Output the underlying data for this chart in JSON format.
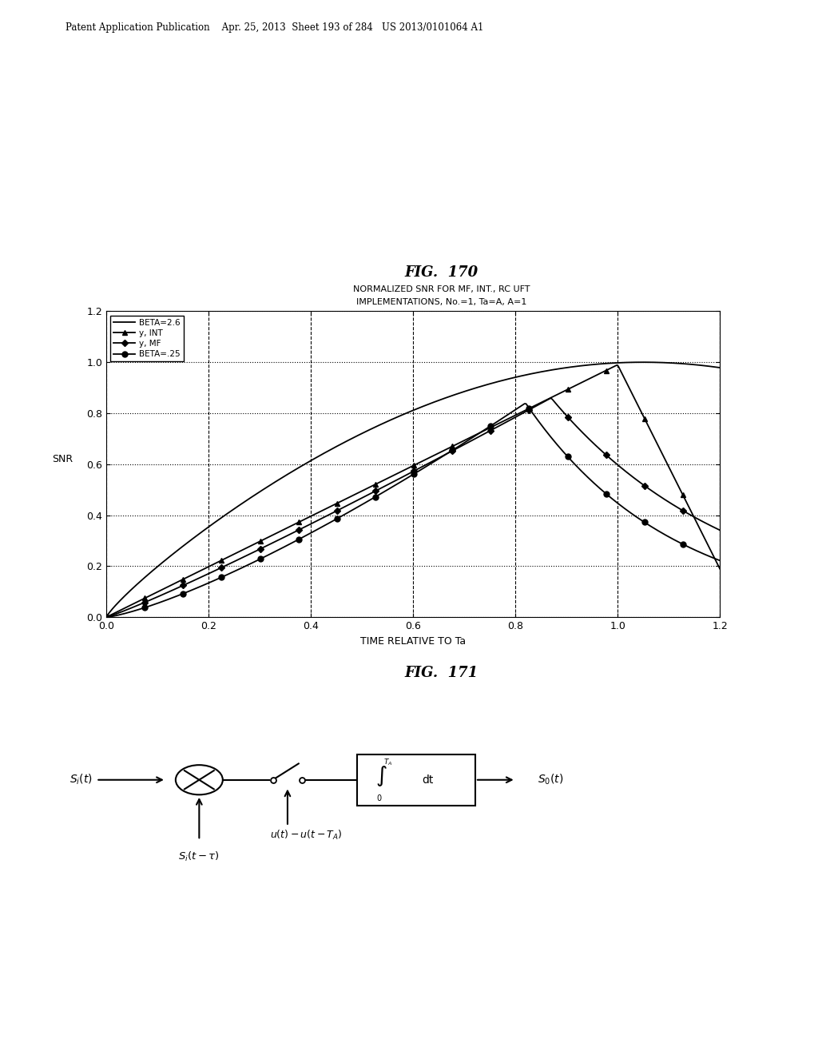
{
  "fig170_title": "FIG.  170",
  "fig170_subtitle1": "NORMALIZED SNR FOR MF, INT., RC UFT",
  "fig170_subtitle2": "IMPLEMENTATIONS, No.=1, Ta=A, A=1",
  "fig170_xlabel": "TIME RELATIVE TO Ta",
  "fig170_ylabel": "SNR",
  "fig170_xlim": [
    0.0,
    1.2
  ],
  "fig170_ylim": [
    0.0,
    1.2
  ],
  "fig170_xticks": [
    0.0,
    0.2,
    0.4,
    0.6,
    0.8,
    1.0,
    1.2
  ],
  "fig170_yticks": [
    0.0,
    0.2,
    0.4,
    0.6,
    0.8,
    1.0,
    1.2
  ],
  "legend_labels": [
    "BETA=2.6",
    "y, INT",
    "y, MF",
    "BETA=.25"
  ],
  "fig171_title": "FIG.  171",
  "background_color": "#ffffff",
  "line_color": "#000000",
  "header_text": "Patent Application Publication    Apr. 25, 2013  Sheet 193 of 284   US 2013/0101064 A1"
}
